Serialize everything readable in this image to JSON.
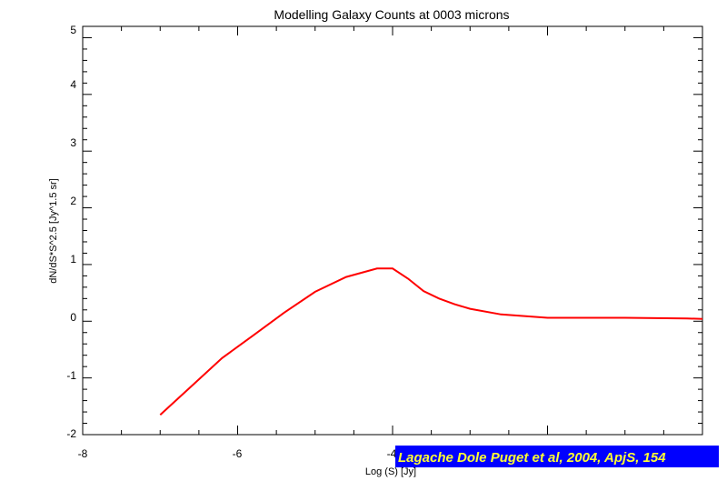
{
  "chart_data": {
    "type": "line",
    "title": "Modelling Galaxy Counts at 0003 microns",
    "xlabel": "Log (S) [Jy]",
    "ylabel": "dN/dS*S^2.5 [Jy^1.5 sr]",
    "xlim": [
      -8,
      0
    ],
    "ylim": [
      -2,
      5.2
    ],
    "x_ticks": [
      "-8",
      "-6",
      "-4"
    ],
    "y_ticks": [
      "-2",
      "-1",
      "0",
      "1",
      "2",
      "3",
      "4",
      "5"
    ],
    "grid": false,
    "series": [
      {
        "color": "#ff0000",
        "x": [
          -7.0,
          -6.6,
          -6.2,
          -5.8,
          -5.4,
          -5.0,
          -4.6,
          -4.2,
          -4.0,
          -3.8,
          -3.6,
          -3.4,
          -3.2,
          -3.0,
          -2.6,
          -2.0,
          -1.0,
          -0.2,
          0.0
        ],
        "y": [
          -1.65,
          -1.15,
          -0.65,
          -0.25,
          0.15,
          0.52,
          0.78,
          0.93,
          0.93,
          0.75,
          0.53,
          0.4,
          0.3,
          0.22,
          0.12,
          0.06,
          0.06,
          0.05,
          0.04
        ]
      }
    ],
    "credit": {
      "text": "Lagache Dole Puget et al, 2004, ApjS, 154",
      "background": "#0000ff",
      "text_color": "#ffff33"
    }
  }
}
